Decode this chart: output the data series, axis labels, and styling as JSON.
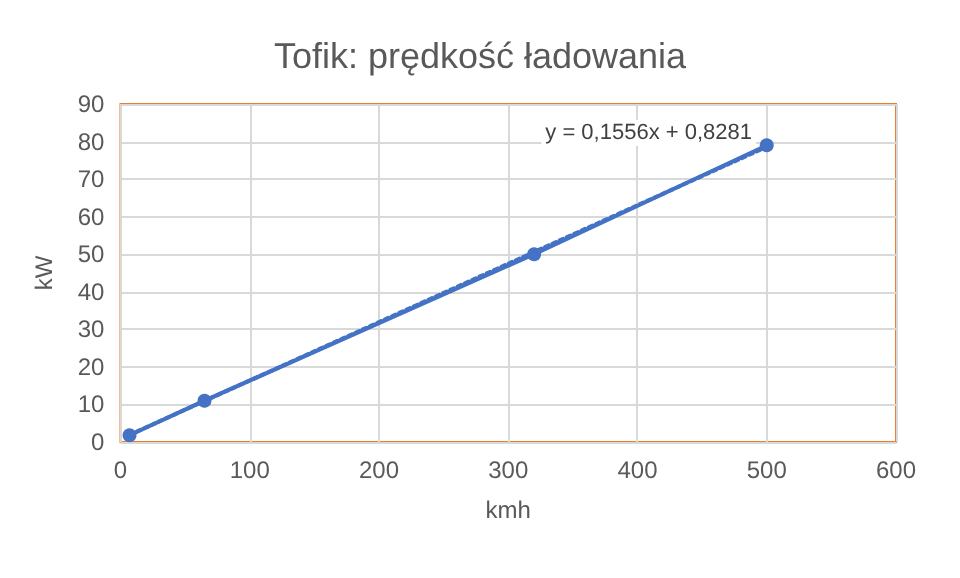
{
  "chart_data": {
    "type": "line",
    "title": "Tofik: prędkość ładowania",
    "xlabel": "kmh",
    "ylabel": "kW",
    "xlim": [
      0,
      600
    ],
    "xticks": [
      0,
      100,
      200,
      300,
      400,
      500,
      600
    ],
    "ylim": [
      0,
      90
    ],
    "yticks": [
      0,
      10,
      20,
      30,
      40,
      50,
      60,
      70,
      80,
      90
    ],
    "grid": true,
    "line_style": "solid",
    "series": [
      {
        "color": "#4472c4",
        "x": [
          7,
          65,
          320,
          500
        ],
        "values": [
          1.8,
          11,
          50,
          79
        ],
        "marker": "circle"
      },
      {
        "type": "line",
        "color": "#4472c4",
        "x": [
          7,
          500
        ],
        "values": [
          1.9,
          78.6
        ],
        "line_style": "dotted"
      }
    ],
    "annotations": [
      "y = 0,1556x + 0,8281"
    ]
  }
}
